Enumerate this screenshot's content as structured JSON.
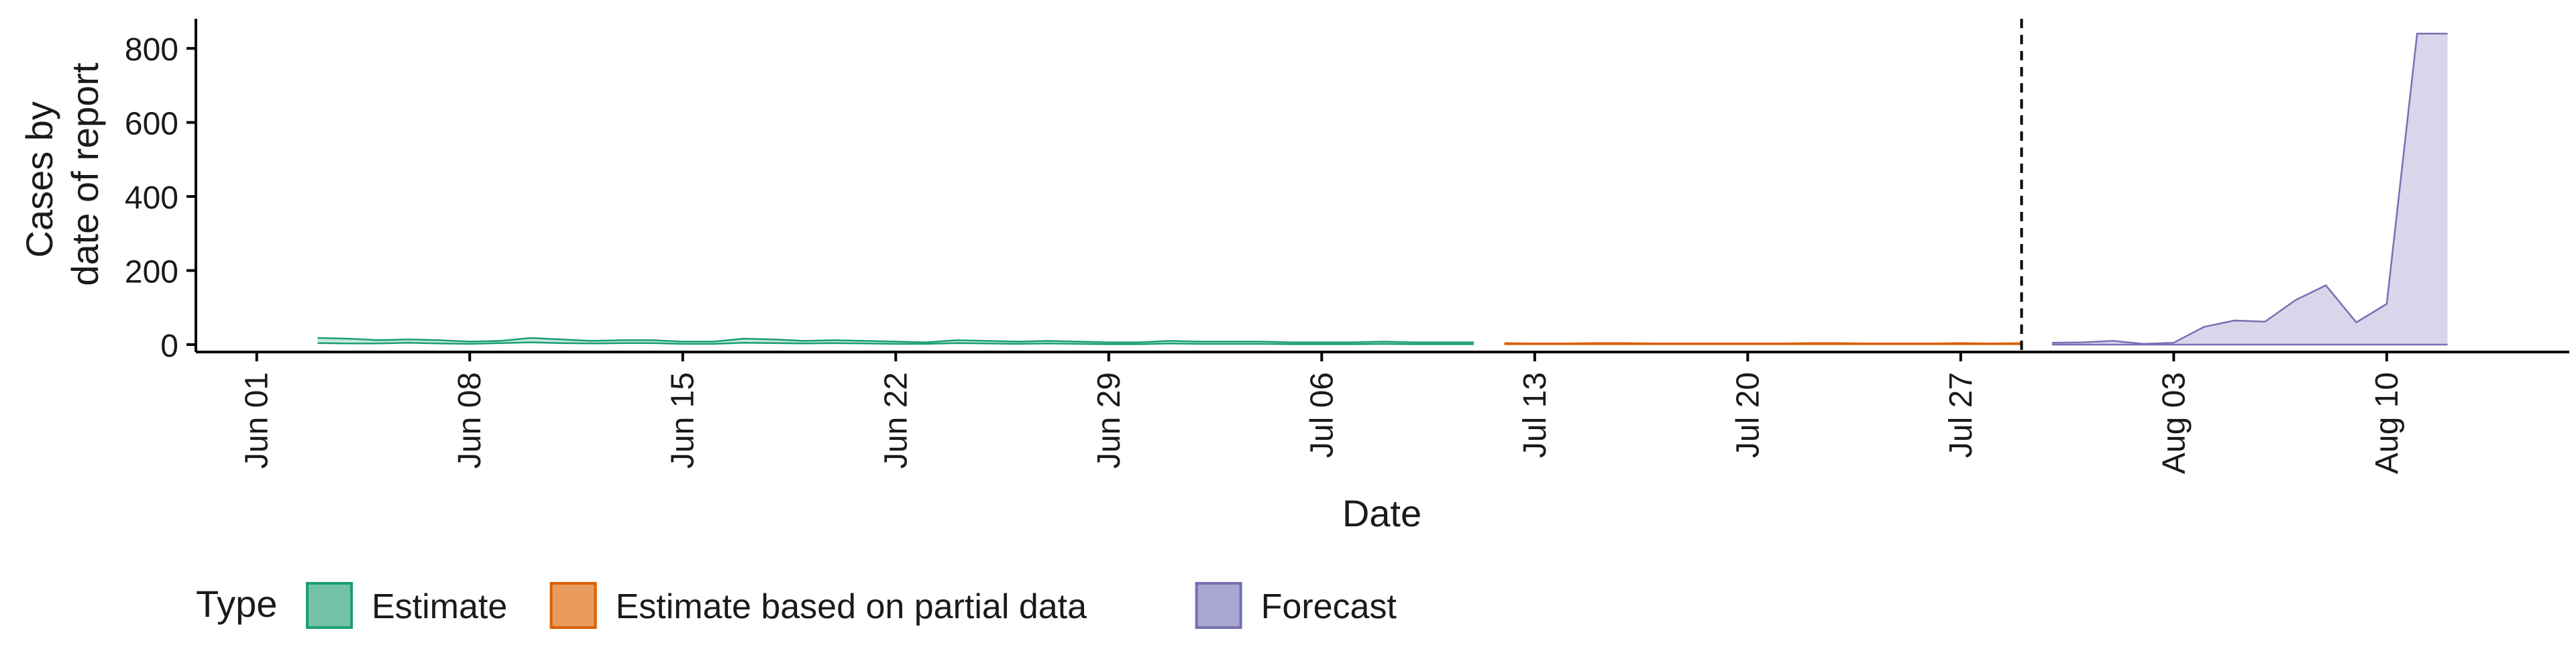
{
  "chart_data": {
    "type": "area",
    "title": "",
    "xlabel": "Date",
    "ylabel": [
      "Cases by",
      "date of report"
    ],
    "x_range": [
      "2020-05-30",
      "2020-08-16"
    ],
    "ylim": [
      -20,
      880
    ],
    "y_ticks": [
      0,
      200,
      400,
      600,
      800
    ],
    "x_ticks": [
      {
        "date": "2020-06-01",
        "label": "Jun 01"
      },
      {
        "date": "2020-06-08",
        "label": "Jun 08"
      },
      {
        "date": "2020-06-15",
        "label": "Jun 15"
      },
      {
        "date": "2020-06-22",
        "label": "Jun 22"
      },
      {
        "date": "2020-06-29",
        "label": "Jun 29"
      },
      {
        "date": "2020-07-06",
        "label": "Jul 06"
      },
      {
        "date": "2020-07-13",
        "label": "Jul 13"
      },
      {
        "date": "2020-07-20",
        "label": "Jul 20"
      },
      {
        "date": "2020-07-27",
        "label": "Jul 27"
      },
      {
        "date": "2020-08-03",
        "label": "Aug 03"
      },
      {
        "date": "2020-08-10",
        "label": "Aug 10"
      }
    ],
    "vline_date": "2020-07-29",
    "legend": {
      "title": "Type",
      "position": "bottom",
      "items": [
        {
          "label": "Estimate",
          "fill": "#73c2a6",
          "stroke": "#1b9e77"
        },
        {
          "label": "Estimate based on partial data",
          "fill": "#e99b5e",
          "stroke": "#d95f02"
        },
        {
          "label": "Forecast",
          "fill": "#a9a6d0",
          "stroke": "#7570b3"
        }
      ]
    },
    "series": [
      {
        "name": "Estimate",
        "color": "#1b9e77",
        "band_fill": "#1b9e77",
        "dates": [
          "2020-06-03",
          "2020-06-04",
          "2020-06-05",
          "2020-06-06",
          "2020-06-07",
          "2020-06-08",
          "2020-06-09",
          "2020-06-10",
          "2020-06-11",
          "2020-06-12",
          "2020-06-13",
          "2020-06-14",
          "2020-06-15",
          "2020-06-16",
          "2020-06-17",
          "2020-06-18",
          "2020-06-19",
          "2020-06-20",
          "2020-06-21",
          "2020-06-22",
          "2020-06-23",
          "2020-06-24",
          "2020-06-25",
          "2020-06-26",
          "2020-06-27",
          "2020-06-28",
          "2020-06-29",
          "2020-06-30",
          "2020-07-01",
          "2020-07-02",
          "2020-07-03",
          "2020-07-04",
          "2020-07-05",
          "2020-07-06",
          "2020-07-07",
          "2020-07-08",
          "2020-07-09",
          "2020-07-10",
          "2020-07-11"
        ],
        "upper": [
          18,
          16,
          12,
          14,
          12,
          8,
          10,
          18,
          14,
          10,
          12,
          12,
          8,
          8,
          16,
          14,
          10,
          12,
          10,
          8,
          6,
          12,
          10,
          8,
          10,
          8,
          6,
          6,
          10,
          8,
          8,
          8,
          6,
          6,
          6,
          8,
          6,
          6,
          6
        ],
        "lower": [
          4,
          3,
          3,
          5,
          3,
          2,
          4,
          6,
          4,
          3,
          4,
          4,
          2,
          2,
          5,
          4,
          3,
          4,
          3,
          2,
          2,
          4,
          3,
          2,
          3,
          2,
          1,
          1,
          3,
          2,
          2,
          2,
          1,
          1,
          1,
          2,
          1,
          1,
          1
        ]
      },
      {
        "name": "Estimate based on partial data",
        "color": "#d95f02",
        "band_fill": "#d95f02",
        "dates": [
          "2020-07-12",
          "2020-07-13",
          "2020-07-14",
          "2020-07-15",
          "2020-07-16",
          "2020-07-17",
          "2020-07-18",
          "2020-07-19",
          "2020-07-20",
          "2020-07-21",
          "2020-07-22",
          "2020-07-23",
          "2020-07-24",
          "2020-07-25",
          "2020-07-26",
          "2020-07-27",
          "2020-07-28",
          "2020-07-29"
        ],
        "upper": [
          4,
          3,
          3,
          4,
          4,
          3,
          3,
          3,
          3,
          3,
          4,
          4,
          3,
          3,
          3,
          4,
          3,
          4
        ],
        "lower": [
          1,
          1,
          1,
          1,
          1,
          1,
          1,
          1,
          1,
          1,
          1,
          1,
          1,
          1,
          1,
          1,
          1,
          1
        ]
      },
      {
        "name": "Forecast",
        "color": "#7570b3",
        "band_fill": "#cfcce6",
        "dates": [
          "2020-07-30",
          "2020-07-31",
          "2020-08-01",
          "2020-08-02",
          "2020-08-03",
          "2020-08-04",
          "2020-08-05",
          "2020-08-06",
          "2020-08-07",
          "2020-08-08",
          "2020-08-09",
          "2020-08-10",
          "2020-08-11",
          "2020-08-12"
        ],
        "upper": [
          5,
          6,
          10,
          2,
          5,
          48,
          65,
          62,
          120,
          160,
          60,
          110,
          840,
          840
        ],
        "lower": [
          0,
          0,
          0,
          0,
          0,
          0,
          0,
          0,
          0,
          0,
          0,
          0,
          0,
          0
        ]
      }
    ]
  }
}
